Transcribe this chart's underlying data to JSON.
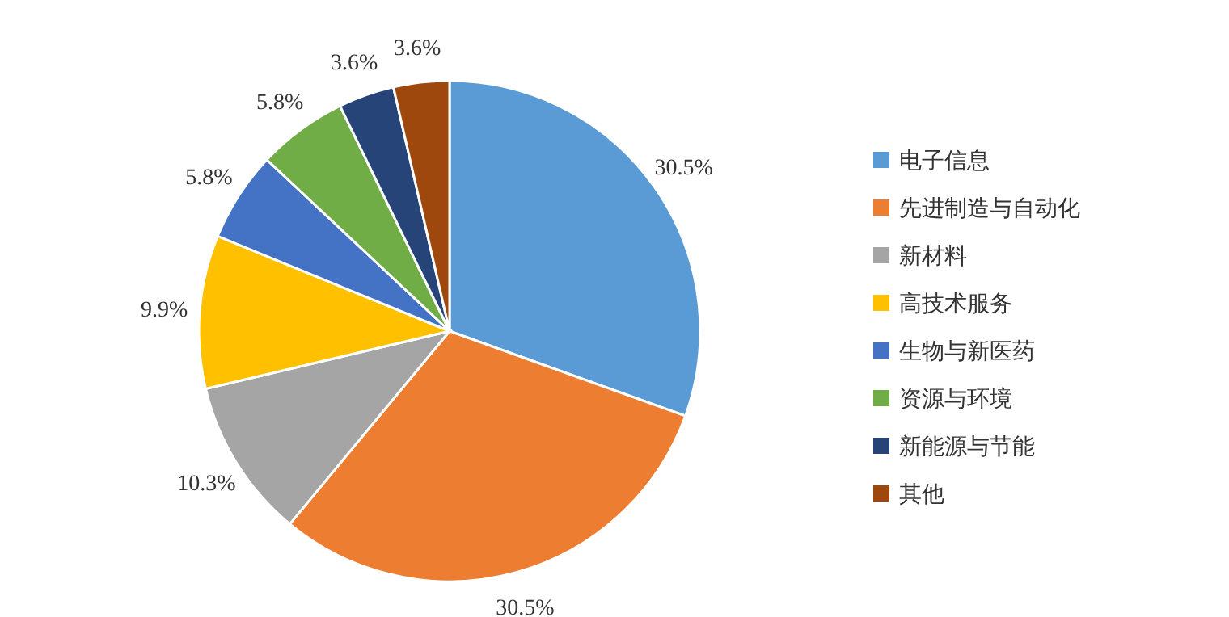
{
  "chart_data": {
    "type": "pie",
    "categories": [
      "电子信息",
      "先进制造与自动化",
      "新材料",
      "高技术服务",
      "生物与新医药",
      "资源与环境",
      "新能源与节能",
      "其他"
    ],
    "values": [
      30.5,
      30.5,
      10.3,
      9.9,
      5.8,
      5.8,
      3.6,
      3.6
    ],
    "value_labels": [
      "30.5%",
      "30.5%",
      "10.3%",
      "9.9%",
      "5.8%",
      "5.8%",
      "3.6%",
      "3.6%"
    ],
    "colors": [
      "#5b9bd5",
      "#ed7d31",
      "#a5a5a5",
      "#ffc000",
      "#4472c4",
      "#70ad47",
      "#264478",
      "#9e480e"
    ],
    "legend": "right"
  }
}
